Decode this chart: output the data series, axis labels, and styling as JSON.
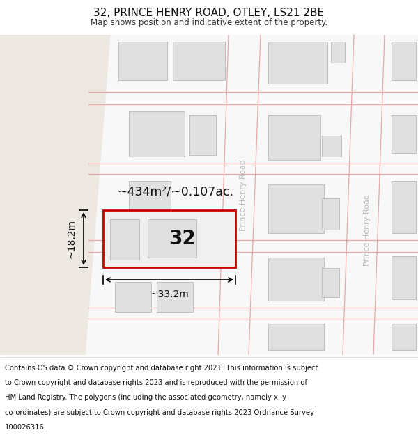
{
  "title_line1": "32, PRINCE HENRY ROAD, OTLEY, LS21 2BE",
  "title_line2": "Map shows position and indicative extent of the property.",
  "footer_lines": [
    "Contains OS data © Crown copyright and database right 2021. This information is subject",
    "to Crown copyright and database rights 2023 and is reproduced with the permission of",
    "HM Land Registry. The polygons (including the associated geometry, namely x, y",
    "co-ordinates) are subject to Crown copyright and database rights 2023 Ordnance Survey",
    "100026316."
  ],
  "map_bg_color": "#ede8e2",
  "road_bg_color": "#f8f8f8",
  "block_fill": "#e0e0e0",
  "block_stroke": "#bebebe",
  "road_line_color": "#e8a8a8",
  "prop_fill": "#f0f0f0",
  "prop_stroke": "#cc0000",
  "road_label_color": "#b8b8b8",
  "area_label": "~434m²/~0.107ac.",
  "number_label": "32",
  "width_label": "~33.2m",
  "height_label": "~18.2m",
  "road_label": "Prince Henry Road"
}
